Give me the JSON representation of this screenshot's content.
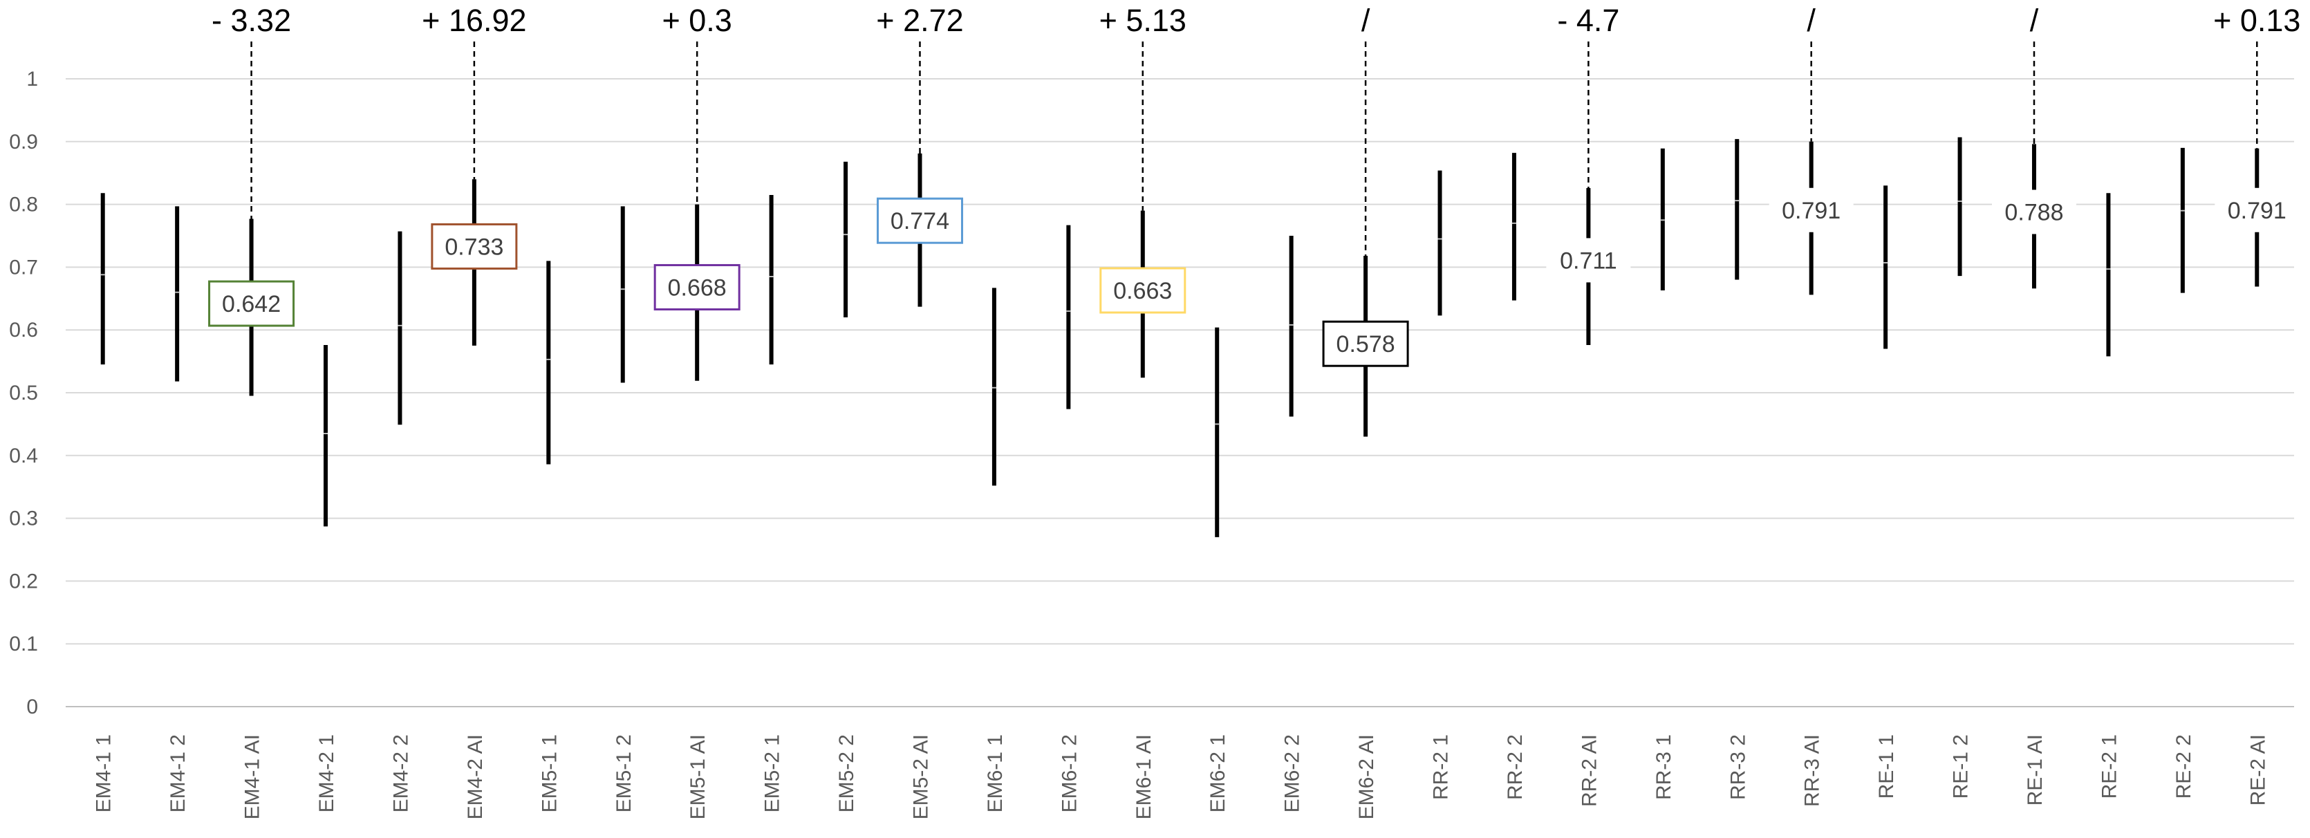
{
  "chart_data": {
    "type": "box-range",
    "title": "",
    "xlabel": "",
    "ylabel": "",
    "ylim": [
      0,
      1
    ],
    "y_ticks": [
      "0",
      "0.1",
      "0.2",
      "0.3",
      "0.4",
      "0.5",
      "0.6",
      "0.7",
      "0.8",
      "0.9",
      "1"
    ],
    "grid": true,
    "categories": [
      "EM4-1 1",
      "EM4-1 2",
      "EM4-1 AI",
      "EM4-2 1",
      "EM4-2 2",
      "EM4-2 AI",
      "EM5-1 1",
      "EM5-1 2",
      "EM5-1 AI",
      "EM5-2 1",
      "EM5-2 2",
      "EM5-2 AI",
      "EM6-1 1",
      "EM6-1 2",
      "EM6-1 AI",
      "EM6-2 1",
      "EM6-2 2",
      "EM6-2 AI",
      "RR-2 1",
      "RR-2 2",
      "RR-2 AI",
      "RR-3 1",
      "RR-3 2",
      "RR-3 AI",
      "RE-1 1",
      "RE-1 2",
      "RE-1 AI",
      "RE-2 1",
      "RE-2 2",
      "RE-2 AI"
    ],
    "series": [
      {
        "values": [
          {
            "low": 0.545,
            "high": 0.818,
            "mid": 0.688
          },
          {
            "low": 0.518,
            "high": 0.797,
            "mid": 0.66
          },
          {
            "low": 0.495,
            "high": 0.777,
            "mid": 0.642
          },
          {
            "low": 0.287,
            "high": 0.576,
            "mid": 0.435
          },
          {
            "low": 0.449,
            "high": 0.757,
            "mid": 0.607
          },
          {
            "low": 0.575,
            "high": 0.84,
            "mid": 0.733
          },
          {
            "low": 0.386,
            "high": 0.71,
            "mid": 0.553
          },
          {
            "low": 0.516,
            "high": 0.797,
            "mid": 0.665
          },
          {
            "low": 0.519,
            "high": 0.8,
            "mid": 0.668
          },
          {
            "low": 0.545,
            "high": 0.815,
            "mid": 0.685
          },
          {
            "low": 0.62,
            "high": 0.868,
            "mid": 0.752
          },
          {
            "low": 0.637,
            "high": 0.881,
            "mid": 0.774
          },
          {
            "low": 0.352,
            "high": 0.667,
            "mid": 0.508
          },
          {
            "low": 0.474,
            "high": 0.767,
            "mid": 0.63
          },
          {
            "low": 0.524,
            "high": 0.79,
            "mid": 0.663
          },
          {
            "low": 0.27,
            "high": 0.604,
            "mid": 0.45
          },
          {
            "low": 0.462,
            "high": 0.75,
            "mid": 0.608
          },
          {
            "low": 0.43,
            "high": 0.718,
            "mid": 0.578
          },
          {
            "low": 0.623,
            "high": 0.854,
            "mid": 0.745
          },
          {
            "low": 0.647,
            "high": 0.882,
            "mid": 0.77
          },
          {
            "low": 0.576,
            "high": 0.826,
            "mid": 0.711
          },
          {
            "low": 0.663,
            "high": 0.889,
            "mid": 0.775
          },
          {
            "low": 0.68,
            "high": 0.904,
            "mid": 0.806
          },
          {
            "low": 0.656,
            "high": 0.9,
            "mid": 0.791
          },
          {
            "low": 0.57,
            "high": 0.83,
            "mid": 0.707
          },
          {
            "low": 0.686,
            "high": 0.907,
            "mid": 0.805
          },
          {
            "low": 0.666,
            "high": 0.896,
            "mid": 0.788
          },
          {
            "low": 0.558,
            "high": 0.818,
            "mid": 0.697
          },
          {
            "low": 0.659,
            "high": 0.89,
            "mid": 0.79
          },
          {
            "low": 0.669,
            "high": 0.889,
            "mid": 0.791
          }
        ]
      }
    ],
    "value_labels": [
      {
        "category_index": 2,
        "text": "0.642",
        "value": 0.642,
        "border_color": "#548235"
      },
      {
        "category_index": 5,
        "text": "0.733",
        "value": 0.733,
        "border_color": "#a0522d"
      },
      {
        "category_index": 8,
        "text": "0.668",
        "value": 0.668,
        "border_color": "#7030a0"
      },
      {
        "category_index": 11,
        "text": "0.774",
        "value": 0.774,
        "border_color": "#5b9bd5"
      },
      {
        "category_index": 14,
        "text": "0.663",
        "value": 0.663,
        "border_color": "#ffd966"
      },
      {
        "category_index": 17,
        "text": "0.578",
        "value": 0.578,
        "border_color": "#000000"
      },
      {
        "category_index": 20,
        "text": "0.711",
        "value": 0.711,
        "border_color": ""
      },
      {
        "category_index": 23,
        "text": "0.791",
        "value": 0.791,
        "border_color": ""
      },
      {
        "category_index": 26,
        "text": "0.788",
        "value": 0.788,
        "border_color": ""
      },
      {
        "category_index": 29,
        "text": "0.791",
        "value": 0.791,
        "border_color": ""
      }
    ],
    "annotations": [
      {
        "category_index": 2,
        "text": "- 3.32"
      },
      {
        "category_index": 5,
        "text": "+ 16.92"
      },
      {
        "category_index": 8,
        "text": "+ 0.3"
      },
      {
        "category_index": 11,
        "text": "+ 2.72"
      },
      {
        "category_index": 14,
        "text": "+ 5.13"
      },
      {
        "category_index": 17,
        "text": "/"
      },
      {
        "category_index": 20,
        "text": "- 4.7"
      },
      {
        "category_index": 23,
        "text": "/"
      },
      {
        "category_index": 26,
        "text": "/"
      },
      {
        "category_index": 29,
        "text": "+ 0.13"
      }
    ],
    "colors": {
      "bar": "#000000",
      "grid": "#d9d9d9",
      "axis": "#bfbfbf",
      "tick_text": "#595959",
      "annotation_text": "#000000",
      "value_text": "#404040"
    }
  }
}
